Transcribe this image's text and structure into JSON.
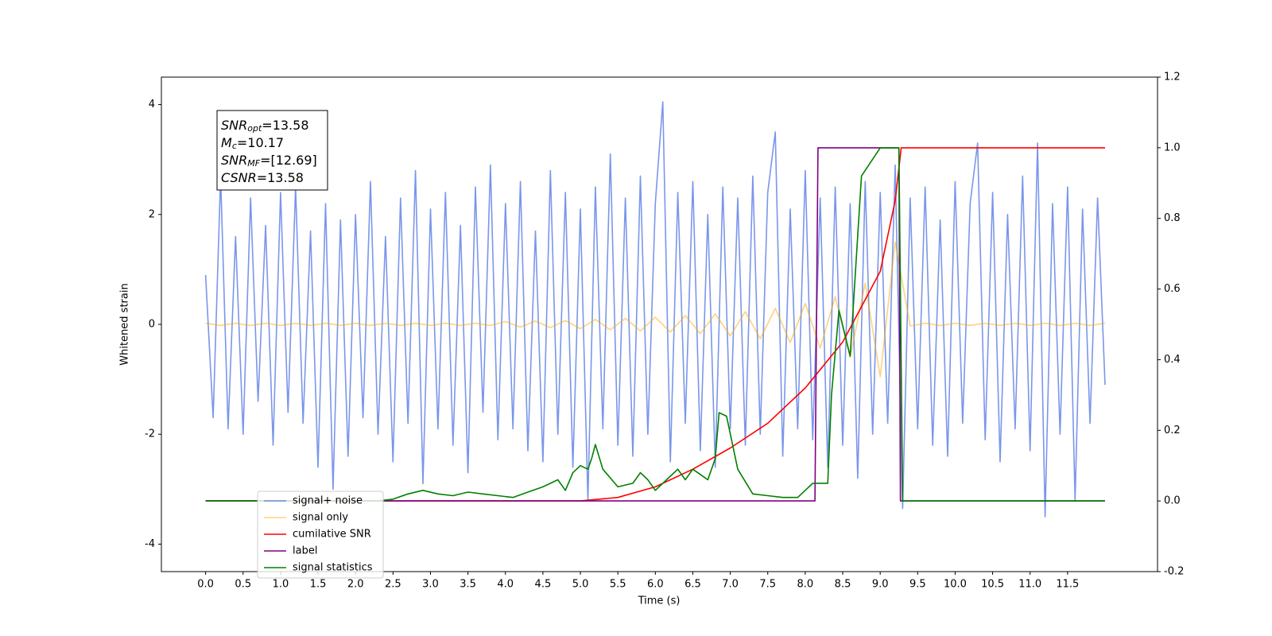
{
  "chart_data": {
    "type": "line",
    "xlabel": "Time (s)",
    "ylabel": "Whitened strain",
    "xlim": [
      -0.59,
      12.7
    ],
    "ylim": [
      -4.5,
      4.5
    ],
    "y2lim": [
      -0.2,
      1.2
    ],
    "xticks": [
      {
        "value": 0,
        "label": "0.0"
      },
      0.5,
      {
        "value": 1,
        "label": "1.0"
      },
      1.5,
      {
        "value": 2,
        "label": "2.0"
      },
      2.5,
      {
        "value": 3,
        "label": "3.0"
      },
      3.5,
      {
        "value": 4,
        "label": "4.0"
      },
      4.5,
      {
        "value": 5,
        "label": "5.0"
      },
      5.5,
      {
        "value": 6,
        "label": "6.0"
      },
      6.5,
      {
        "value": 7,
        "label": "7.0"
      },
      7.5,
      {
        "value": 8,
        "label": "8.0"
      },
      8.5,
      {
        "value": 9,
        "label": "9.0"
      },
      9.5,
      {
        "value": 10,
        "label": "10.0"
      },
      10.5,
      {
        "value": 11,
        "label": "11.0"
      },
      11.5
    ],
    "yticks": [
      -4,
      -2,
      0,
      2,
      4
    ],
    "y2ticks": [
      -0.2,
      {
        "value": 0,
        "label": "0.0"
      },
      0.2,
      0.4,
      0.6,
      0.8,
      {
        "value": 1,
        "label": "1.0"
      },
      1.2
    ],
    "annotation": [
      {
        "symbol": "SNR",
        "subscript": "opt",
        "text": "=13.58"
      },
      {
        "symbol": "M",
        "subscript": "c",
        "text": "=10.17"
      },
      {
        "symbol": "SNR",
        "subscript": "MF",
        "text": "=[12.69]"
      },
      {
        "symbol": "CSNR",
        "text": "=13.58"
      }
    ],
    "series": [
      {
        "name": "signal+ noise",
        "color": "#4169e1",
        "alpha": 0.7,
        "x": [
          0,
          0.1,
          0.2,
          0.3,
          0.4,
          0.5,
          0.6,
          0.7,
          0.8,
          0.9,
          1,
          1.1,
          1.2,
          1.3,
          1.4,
          1.5,
          1.6,
          1.7,
          1.8,
          1.9,
          2,
          2.1,
          2.2,
          2.3,
          2.4,
          2.5,
          2.6,
          2.7,
          2.8,
          2.9,
          3,
          3.1,
          3.2,
          3.3,
          3.4,
          3.5,
          3.6,
          3.7,
          3.8,
          3.9,
          4,
          4.1,
          4.2,
          4.3,
          4.4,
          4.5,
          4.6,
          4.7,
          4.8,
          4.9,
          5,
          5.1,
          5.2,
          5.3,
          5.4,
          5.5,
          5.6,
          5.7,
          5.8,
          5.9,
          6,
          6.1,
          6.2,
          6.3,
          6.4,
          6.5,
          6.6,
          6.7,
          6.8,
          6.9,
          7,
          7.1,
          7.2,
          7.3,
          7.4,
          7.5,
          7.6,
          7.7,
          7.8,
          7.9,
          8,
          8.1,
          8.2,
          8.3,
          8.4,
          8.5,
          8.6,
          8.7,
          8.8,
          8.9,
          9,
          9.1,
          9.2,
          9.3,
          9.4,
          9.5,
          9.6,
          9.7,
          9.8,
          9.9,
          10,
          10.1,
          10.2,
          10.3,
          10.4,
          10.5,
          10.6,
          10.7,
          10.8,
          10.9,
          11,
          11.1,
          11.2,
          11.3,
          11.4,
          11.5,
          11.6,
          11.7,
          11.8,
          11.9,
          12
        ],
        "values": [
          0.9,
          -1.7,
          2.7,
          -1.9,
          1.6,
          -2.0,
          2.3,
          -1.4,
          1.8,
          -2.2,
          2.4,
          -1.6,
          2.5,
          -1.8,
          1.7,
          -2.6,
          2.2,
          -3.0,
          1.9,
          -2.4,
          2.0,
          -1.7,
          2.6,
          -2.0,
          1.6,
          -2.5,
          2.3,
          -1.8,
          2.8,
          -2.9,
          2.1,
          -1.9,
          2.4,
          -2.2,
          1.8,
          -2.7,
          2.5,
          -1.6,
          2.9,
          -2.1,
          2.2,
          -1.9,
          2.6,
          -2.3,
          1.7,
          -2.5,
          2.8,
          -2.0,
          2.4,
          -2.6,
          2.1,
          -3.2,
          2.5,
          -1.9,
          3.1,
          -2.2,
          2.3,
          -2.4,
          2.7,
          -2.0,
          2.2,
          4.05,
          -2.5,
          2.4,
          -1.8,
          2.6,
          -2.3,
          2.0,
          -2.6,
          2.5,
          -1.9,
          2.3,
          -2.2,
          2.7,
          -2.0,
          2.4,
          3.5,
          -2.4,
          2.1,
          -1.9,
          2.8,
          -2.1,
          2.3,
          -2.6,
          2.5,
          -2.2,
          2.2,
          -2.8,
          2.6,
          -2.0,
          2.4,
          -1.8,
          2.9,
          -3.35,
          2.3,
          -1.9,
          2.5,
          -2.2,
          1.9,
          -2.4,
          2.6,
          -1.8,
          2.2,
          3.3,
          -2.1,
          2.4,
          -2.5,
          2.0,
          -1.9,
          2.7,
          -2.3,
          3.3,
          -3.5,
          2.2,
          -2.0,
          2.5,
          -3.2,
          2.1,
          -1.8,
          2.3,
          -1.1
        ]
      },
      {
        "name": "signal only",
        "color": "orange",
        "alpha": 0.5,
        "x": [
          0,
          0.2,
          0.4,
          0.6,
          0.8,
          1,
          1.2,
          1.4,
          1.6,
          1.8,
          2,
          2.2,
          2.4,
          2.6,
          2.8,
          3,
          3.2,
          3.4,
          3.6,
          3.8,
          4,
          4.2,
          4.4,
          4.6,
          4.8,
          5,
          5.2,
          5.4,
          5.6,
          5.8,
          6,
          6.2,
          6.4,
          6.6,
          6.8,
          7,
          7.2,
          7.4,
          7.6,
          7.8,
          8,
          8.2,
          8.4,
          8.6,
          8.8,
          9,
          9.2,
          9.4,
          9.6,
          9.8,
          10,
          10.2,
          10.4,
          10.6,
          10.8,
          11,
          11.2,
          11.4,
          11.6,
          11.8,
          12
        ],
        "values": [
          0.02,
          -0.02,
          0.02,
          -0.02,
          0.02,
          -0.02,
          0.02,
          -0.02,
          0.02,
          -0.02,
          0.02,
          -0.02,
          0.02,
          -0.02,
          0.02,
          -0.02,
          0.02,
          -0.02,
          0.02,
          -0.02,
          0.05,
          -0.05,
          0.06,
          -0.06,
          0.07,
          -0.08,
          0.09,
          -0.1,
          0.11,
          -0.12,
          0.13,
          -0.14,
          0.16,
          -0.17,
          0.19,
          -0.21,
          0.23,
          -0.26,
          0.29,
          -0.33,
          0.38,
          -0.43,
          0.5,
          -0.6,
          0.75,
          -0.95,
          1.5,
          -0.03,
          0.02,
          -0.02,
          0.02,
          -0.02,
          0.02,
          -0.02,
          0.02,
          -0.02,
          0.02,
          -0.02,
          0.02,
          -0.02,
          0.02
        ]
      },
      {
        "name": "cumilative SNR",
        "color": "red",
        "axis": "y2",
        "x": [
          0,
          5,
          5.5,
          6,
          6.5,
          7,
          7.5,
          8,
          8.5,
          9,
          9.2,
          9.28,
          12
        ],
        "values": [
          0,
          0,
          0.01,
          0.04,
          0.09,
          0.15,
          0.22,
          0.32,
          0.45,
          0.65,
          0.85,
          1,
          1
        ]
      },
      {
        "name": "label",
        "color": "purple",
        "axis": "y2",
        "x": [
          0,
          8.13,
          8.17,
          9.25,
          9.27,
          12
        ],
        "values": [
          0,
          0,
          1,
          1,
          0,
          0
        ]
      },
      {
        "name": "signal statistics",
        "color": "green",
        "axis": "y2",
        "x": [
          0,
          2.3,
          2.5,
          2.7,
          2.9,
          3.1,
          3.3,
          3.5,
          3.7,
          3.9,
          4.1,
          4.3,
          4.5,
          4.7,
          4.8,
          4.9,
          5,
          5.1,
          5.15,
          5.2,
          5.3,
          5.5,
          5.7,
          5.8,
          5.9,
          6,
          6.2,
          6.3,
          6.4,
          6.5,
          6.7,
          6.8,
          6.85,
          6.95,
          7.1,
          7.3,
          7.5,
          7.7,
          7.9,
          8,
          8.1,
          8.3,
          8.35,
          8.45,
          8.6,
          8.75,
          9,
          9.25,
          9.3,
          12
        ],
        "values": [
          0,
          0,
          0.005,
          0.02,
          0.03,
          0.02,
          0.015,
          0.025,
          0.02,
          0.015,
          0.01,
          0.025,
          0.04,
          0.06,
          0.03,
          0.08,
          0.1,
          0.09,
          0.12,
          0.16,
          0.09,
          0.04,
          0.05,
          0.08,
          0.06,
          0.03,
          0.07,
          0.09,
          0.06,
          0.09,
          0.06,
          0.12,
          0.25,
          0.24,
          0.09,
          0.02,
          0.015,
          0.01,
          0.01,
          0.03,
          0.05,
          0.05,
          0.3,
          0.54,
          0.41,
          0.92,
          1,
          1,
          0,
          0
        ]
      }
    ]
  }
}
